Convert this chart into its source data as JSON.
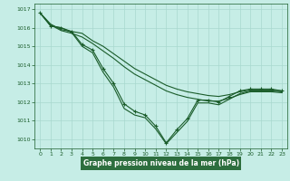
{
  "title": "Graphe pression niveau de la mer (hPa)",
  "background_color": "#c6ede6",
  "grid_color": "#a8d8ce",
  "line_color": "#1a5c2a",
  "xlabel_bg": "#2d6e3e",
  "xlim": [
    -0.5,
    23.5
  ],
  "ylim": [
    1009.5,
    1017.3
  ],
  "yticks": [
    1010,
    1011,
    1012,
    1013,
    1014,
    1015,
    1016,
    1017
  ],
  "xticks": [
    0,
    1,
    2,
    3,
    4,
    5,
    6,
    7,
    8,
    9,
    10,
    11,
    12,
    13,
    14,
    15,
    16,
    17,
    18,
    19,
    20,
    21,
    22,
    23
  ],
  "series": [
    {
      "x": [
        0,
        1,
        2,
        3,
        4,
        5,
        6,
        7,
        8,
        9,
        10,
        11,
        12,
        13,
        14,
        15,
        16,
        17,
        18,
        19,
        20,
        21,
        22,
        23
      ],
      "y": [
        1016.8,
        1016.2,
        1015.9,
        1015.8,
        1015.7,
        1015.3,
        1015.0,
        1014.6,
        1014.2,
        1013.8,
        1013.5,
        1013.2,
        1012.9,
        1012.7,
        1012.55,
        1012.45,
        1012.35,
        1012.3,
        1012.4,
        1012.55,
        1012.65,
        1012.65,
        1012.65,
        1012.6
      ],
      "has_markers": false
    },
    {
      "x": [
        0,
        1,
        2,
        3,
        4,
        5,
        6,
        7,
        8,
        9,
        10,
        11,
        12,
        13,
        14,
        15,
        16,
        17,
        18,
        19,
        20,
        21,
        22,
        23
      ],
      "y": [
        1016.8,
        1016.15,
        1015.85,
        1015.7,
        1015.5,
        1015.15,
        1014.75,
        1014.35,
        1013.9,
        1013.5,
        1013.2,
        1012.9,
        1012.6,
        1012.4,
        1012.25,
        1012.15,
        1012.05,
        1012.05,
        1012.2,
        1012.4,
        1012.55,
        1012.55,
        1012.55,
        1012.5
      ],
      "has_markers": false
    },
    {
      "x": [
        0,
        1,
        2,
        3,
        4,
        5,
        6,
        7,
        8,
        9,
        10,
        11,
        12,
        13,
        14,
        15,
        16,
        17,
        18,
        19,
        20,
        21,
        22,
        23
      ],
      "y": [
        1016.8,
        1016.1,
        1016.0,
        1015.8,
        1015.1,
        1014.8,
        1013.8,
        1013.0,
        1011.9,
        1011.5,
        1011.3,
        1010.7,
        1009.8,
        1010.5,
        1011.1,
        1012.1,
        1012.1,
        1012.0,
        1012.3,
        1012.6,
        1012.7,
        1012.7,
        1012.7,
        1012.6
      ],
      "has_markers": true
    },
    {
      "x": [
        0,
        1,
        2,
        3,
        4,
        5,
        6,
        7,
        8,
        9,
        10,
        11,
        12,
        13,
        14,
        15,
        16,
        17,
        18,
        19,
        20,
        21,
        22,
        23
      ],
      "y": [
        1016.8,
        1016.1,
        1016.0,
        1015.75,
        1015.0,
        1014.65,
        1013.6,
        1012.8,
        1011.65,
        1011.3,
        1011.15,
        1010.55,
        1009.75,
        1010.35,
        1010.95,
        1011.95,
        1011.95,
        1011.85,
        1012.15,
        1012.45,
        1012.6,
        1012.6,
        1012.6,
        1012.55
      ],
      "has_markers": false
    }
  ]
}
